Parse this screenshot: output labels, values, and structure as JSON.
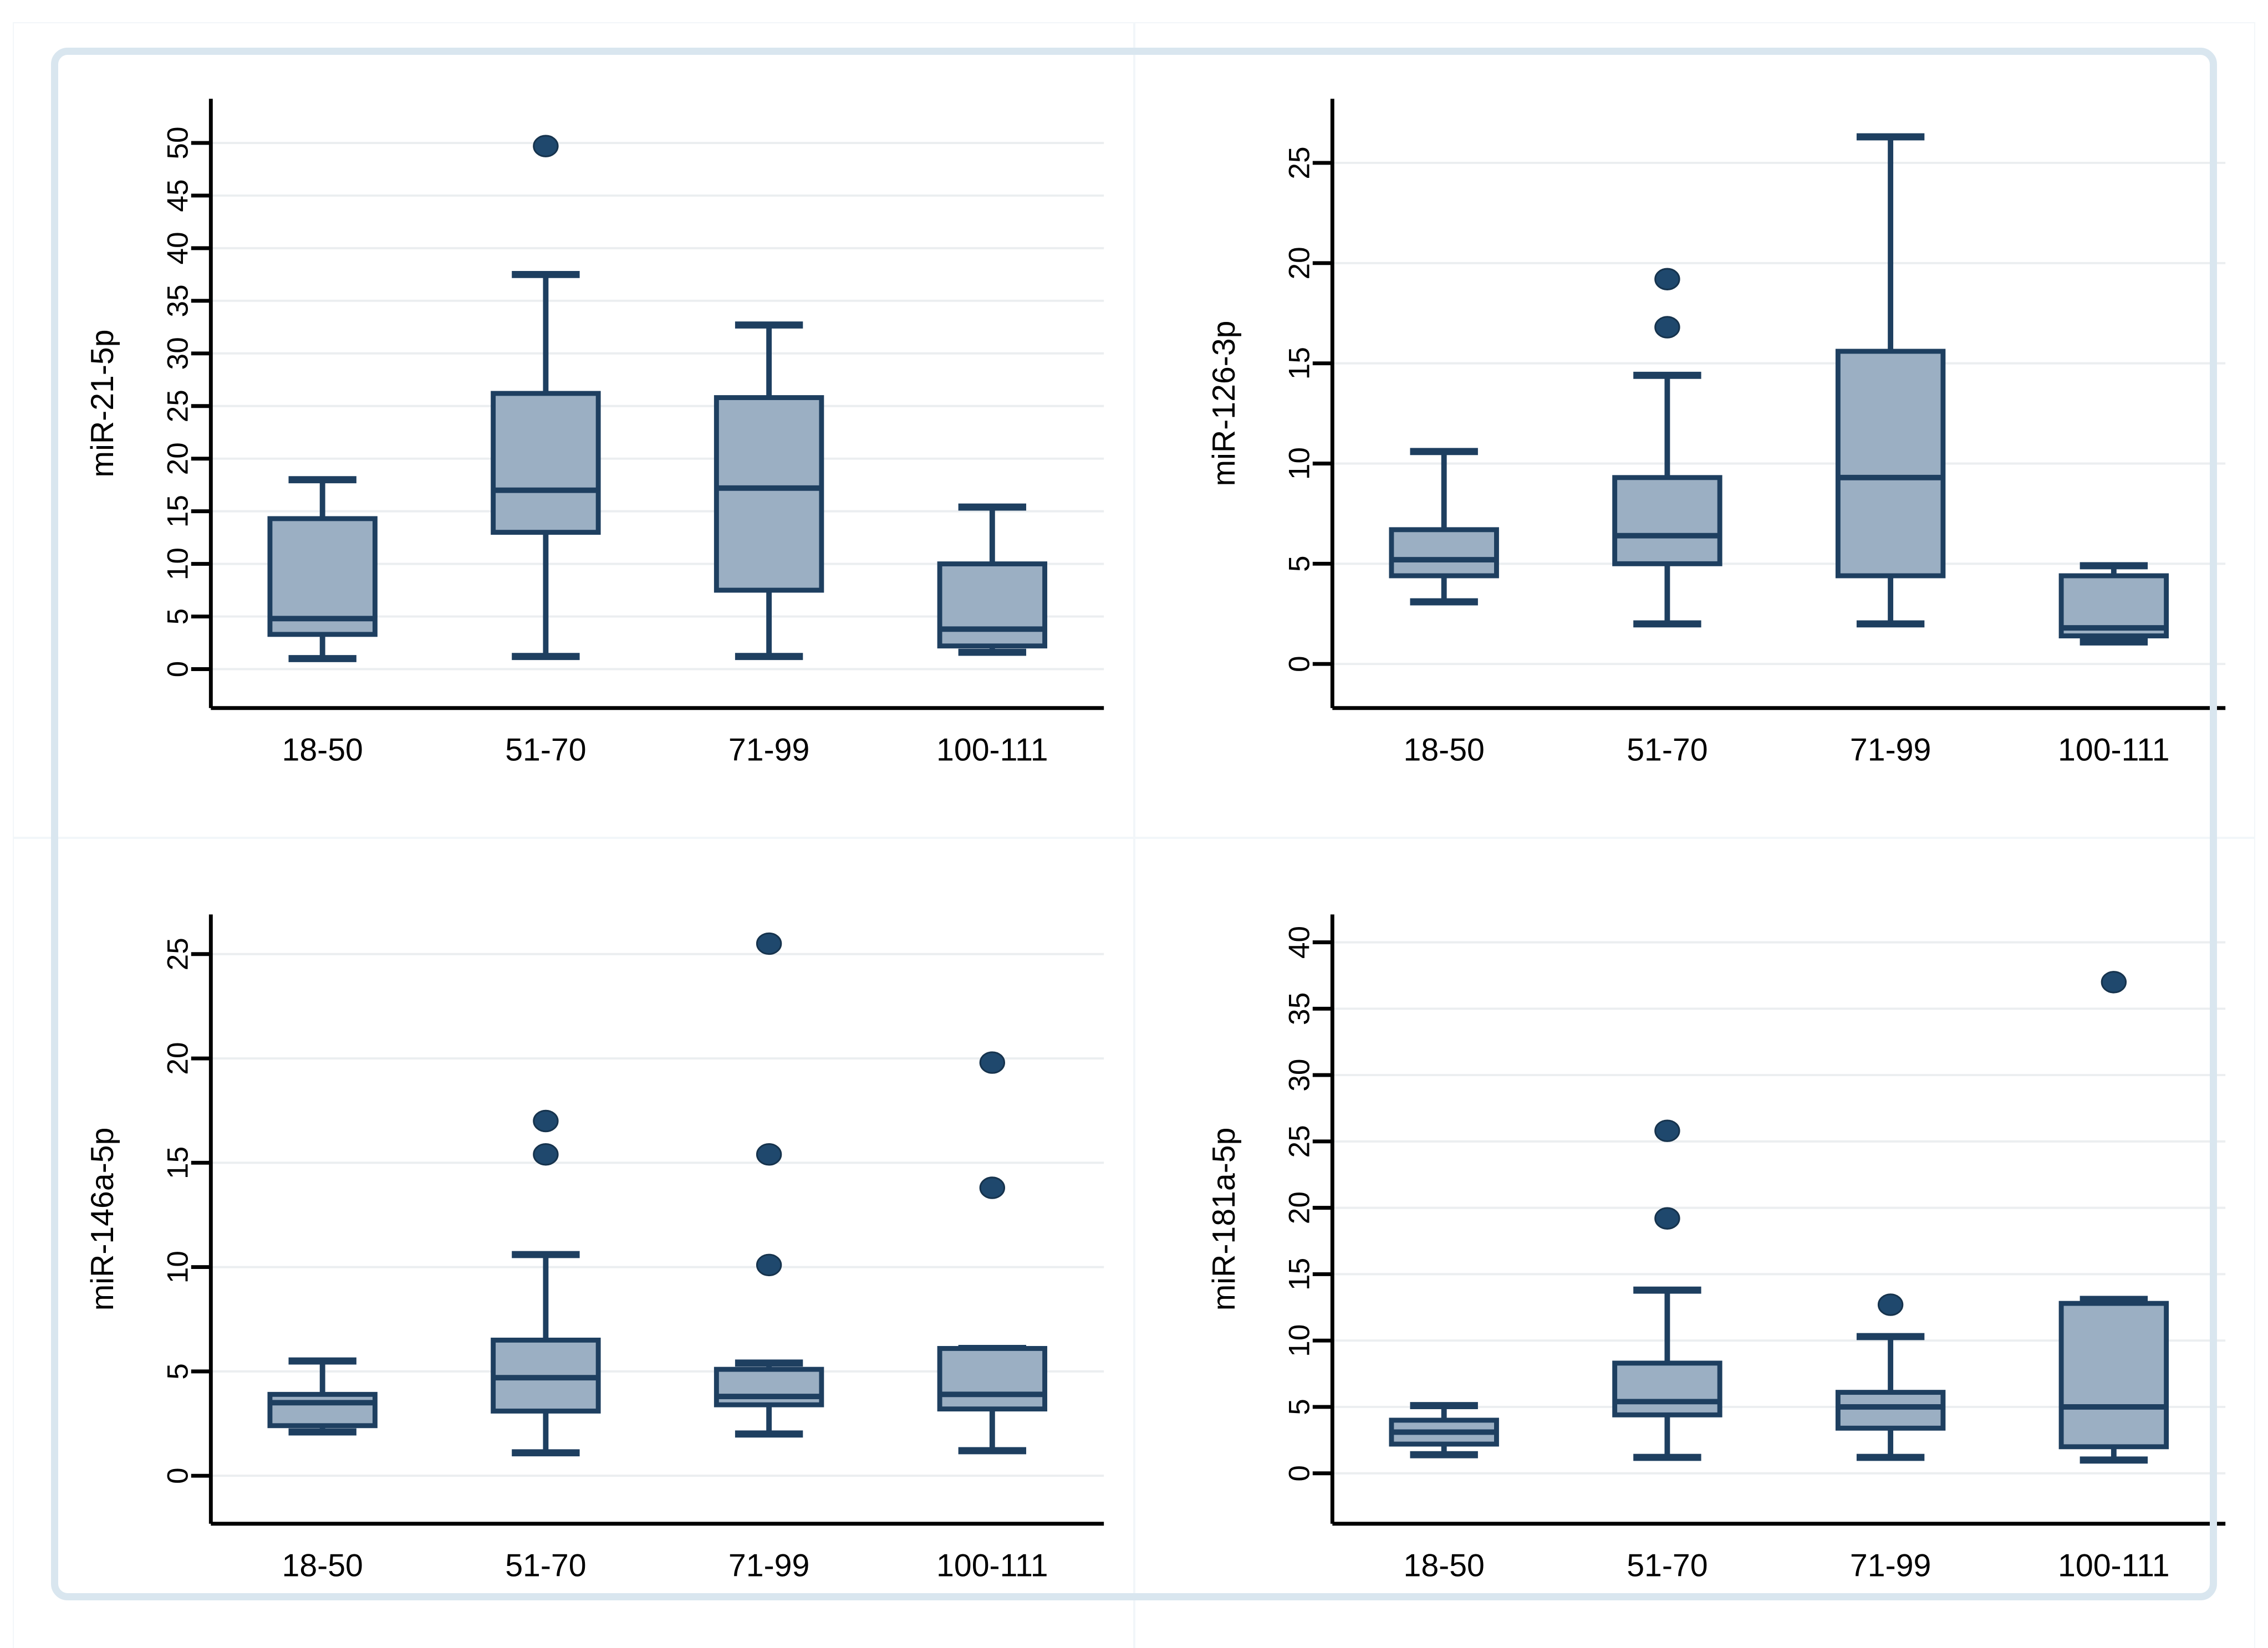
{
  "figure": {
    "background_color": "#ffffff",
    "frame_color": "#d9e6ef",
    "layout": "2x2 grid of box plots, Stata style"
  },
  "style": {
    "box_fill": "#9bafc3",
    "box_stroke": "#1e3f60",
    "median_color": "#1e3f60",
    "whisker_color": "#1e3f60",
    "outlier_fill": "#1f486d",
    "outlier_stroke": "#16334d",
    "grid_color": "#ebeef0",
    "axis_color": "#000000",
    "text_color": "#000000",
    "ytick_label_rotation_deg": -90,
    "grid": "horizontal gridlines at each y tick"
  },
  "chart_data": [
    {
      "type": "box",
      "ylabel": "miR-21-5p",
      "xlabel": "",
      "yticks": [
        0,
        5,
        10,
        15,
        20,
        25,
        30,
        35,
        40,
        45,
        50
      ],
      "ylim": [
        -3.7,
        54.2
      ],
      "categories": [
        "18-50",
        "51-70",
        "71-99",
        "100-111"
      ],
      "boxes": [
        {
          "category": "18-50",
          "whisker_low": 1.0,
          "q1": 3.3,
          "median": 4.8,
          "q3": 14.3,
          "whisker_high": 18.0,
          "outliers": []
        },
        {
          "category": "51-70",
          "whisker_low": 1.2,
          "q1": 13.0,
          "median": 17.0,
          "q3": 26.2,
          "whisker_high": 37.5,
          "outliers": [
            49.7
          ]
        },
        {
          "category": "71-99",
          "whisker_low": 1.2,
          "q1": 7.5,
          "median": 17.2,
          "q3": 25.8,
          "whisker_high": 32.7,
          "outliers": []
        },
        {
          "category": "100-111",
          "whisker_low": 1.6,
          "q1": 2.2,
          "median": 3.8,
          "q3": 10.0,
          "whisker_high": 15.4,
          "outliers": []
        }
      ]
    },
    {
      "type": "box",
      "ylabel": "miR-126-3p",
      "xlabel": "",
      "yticks": [
        0,
        5,
        10,
        15,
        20,
        25
      ],
      "ylim": [
        -2.2,
        28.2
      ],
      "categories": [
        "18-50",
        "51-70",
        "71-99",
        "100-111"
      ],
      "boxes": [
        {
          "category": "18-50",
          "whisker_low": 3.1,
          "q1": 4.4,
          "median": 5.2,
          "q3": 6.7,
          "whisker_high": 10.6,
          "outliers": []
        },
        {
          "category": "51-70",
          "whisker_low": 2.0,
          "q1": 5.0,
          "median": 6.4,
          "q3": 9.3,
          "whisker_high": 14.4,
          "outliers": [
            16.8,
            19.2
          ]
        },
        {
          "category": "71-99",
          "whisker_low": 2.0,
          "q1": 4.4,
          "median": 9.3,
          "q3": 15.6,
          "whisker_high": 26.3,
          "outliers": []
        },
        {
          "category": "100-111",
          "whisker_low": 1.1,
          "q1": 1.4,
          "median": 1.8,
          "q3": 4.4,
          "whisker_high": 4.9,
          "outliers": []
        }
      ]
    },
    {
      "type": "box",
      "ylabel": "miR-146a-5p",
      "xlabel": "",
      "yticks": [
        0,
        5,
        10,
        15,
        20,
        25
      ],
      "ylim": [
        -2.3,
        26.9
      ],
      "categories": [
        "18-50",
        "51-70",
        "71-99",
        "100-111"
      ],
      "boxes": [
        {
          "category": "18-50",
          "whisker_low": 2.1,
          "q1": 2.4,
          "median": 3.5,
          "q3": 3.9,
          "whisker_high": 5.5,
          "outliers": []
        },
        {
          "category": "51-70",
          "whisker_low": 1.1,
          "q1": 3.1,
          "median": 4.7,
          "q3": 6.5,
          "whisker_high": 10.6,
          "outliers": [
            15.4,
            17.0
          ]
        },
        {
          "category": "71-99",
          "whisker_low": 2.0,
          "q1": 3.4,
          "median": 3.8,
          "q3": 5.1,
          "whisker_high": 5.4,
          "outliers": [
            10.1,
            15.4,
            25.5
          ]
        },
        {
          "category": "100-111",
          "whisker_low": 1.2,
          "q1": 3.2,
          "median": 3.9,
          "q3": 6.1,
          "whisker_high": 6.1,
          "outliers": [
            13.8,
            19.8
          ]
        }
      ]
    },
    {
      "type": "box",
      "ylabel": "miR-181a-5p",
      "xlabel": "",
      "yticks": [
        0,
        5,
        10,
        15,
        20,
        25,
        30,
        35,
        40
      ],
      "ylim": [
        -3.8,
        42.1
      ],
      "categories": [
        "18-50",
        "51-70",
        "71-99",
        "100-111"
      ],
      "boxes": [
        {
          "category": "18-50",
          "whisker_low": 1.4,
          "q1": 2.2,
          "median": 3.1,
          "q3": 4.0,
          "whisker_high": 5.1,
          "outliers": []
        },
        {
          "category": "51-70",
          "whisker_low": 1.2,
          "q1": 4.4,
          "median": 5.4,
          "q3": 8.3,
          "whisker_high": 13.8,
          "outliers": [
            19.2,
            25.8
          ]
        },
        {
          "category": "71-99",
          "whisker_low": 1.2,
          "q1": 3.4,
          "median": 5.0,
          "q3": 6.1,
          "whisker_high": 10.3,
          "outliers": [
            12.7
          ]
        },
        {
          "category": "100-111",
          "whisker_low": 1.0,
          "q1": 2.0,
          "median": 5.0,
          "q3": 12.8,
          "whisker_high": 13.1,
          "outliers": [
            37.0
          ]
        }
      ]
    }
  ]
}
